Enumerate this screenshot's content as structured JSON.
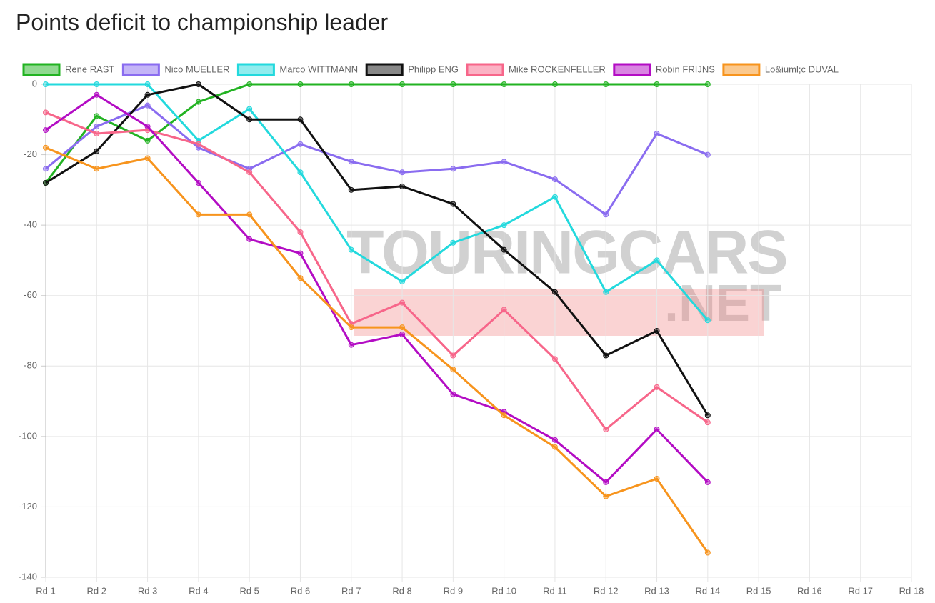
{
  "chart_data": {
    "type": "line",
    "title": "Points deficit to championship leader",
    "watermark": [
      "TOURINGCARS",
      ".NET"
    ],
    "categories": [
      "Rd 1",
      "Rd 2",
      "Rd 3",
      "Rd 4",
      "Rd 5",
      "Rd 6",
      "Rd 7",
      "Rd 8",
      "Rd 9",
      "Rd 10",
      "Rd 11",
      "Rd 12",
      "Rd 13",
      "Rd 14",
      "Rd 15",
      "Rd 16",
      "Rd 17",
      "Rd 18"
    ],
    "ylim": [
      -140,
      0
    ],
    "yticks": [
      0,
      -20,
      -40,
      -60,
      -80,
      -100,
      -120,
      -140
    ],
    "grid": true,
    "legend": "top",
    "series": [
      {
        "name": "Rene RAST",
        "color": "#22b322",
        "values": [
          -28,
          -9,
          -16,
          -5,
          0,
          0,
          0,
          0,
          0,
          0,
          0,
          0,
          0,
          0,
          null,
          null,
          null,
          null
        ]
      },
      {
        "name": "Nico MUELLER",
        "color": "#8a6cf0",
        "values": [
          -24,
          -12,
          -6,
          -18,
          -24,
          -17,
          -22,
          -25,
          -24,
          -22,
          -27,
          -37,
          -14,
          -20,
          null,
          null,
          null,
          null
        ]
      },
      {
        "name": "Marco WITTMANN",
        "color": "#23d9dd",
        "values": [
          0,
          0,
          0,
          -16,
          -7,
          -25,
          -47,
          -56,
          -45,
          -40,
          -32,
          -59,
          -50,
          -67,
          null,
          null,
          null,
          null
        ]
      },
      {
        "name": "Philipp ENG",
        "color": "#111111",
        "values": [
          -28,
          -19,
          -3,
          0,
          -10,
          -10,
          -30,
          -29,
          -34,
          -47,
          -59,
          -77,
          -70,
          -94,
          null,
          null,
          null,
          null
        ]
      },
      {
        "name": "Mike ROCKENFELLER",
        "color": "#f7668a",
        "values": [
          -8,
          -14,
          -13,
          -17,
          -25,
          -42,
          -68,
          -62,
          -77,
          -64,
          -78,
          -98,
          -86,
          -96,
          null,
          null,
          null,
          null
        ]
      },
      {
        "name": "Robin FRIJNS",
        "color": "#b30cc4",
        "values": [
          -13,
          -3,
          -12,
          -28,
          -44,
          -48,
          -74,
          -71,
          -88,
          -93,
          -101,
          -113,
          -98,
          -113,
          null,
          null,
          null,
          null
        ]
      },
      {
        "name": "Lo&iuml;c DUVAL",
        "color": "#f7941d",
        "values": [
          -18,
          -24,
          -21,
          -37,
          -37,
          -55,
          -69,
          -69,
          -81,
          -94,
          -103,
          -117,
          -112,
          -133,
          null,
          null,
          null,
          null
        ]
      }
    ]
  }
}
